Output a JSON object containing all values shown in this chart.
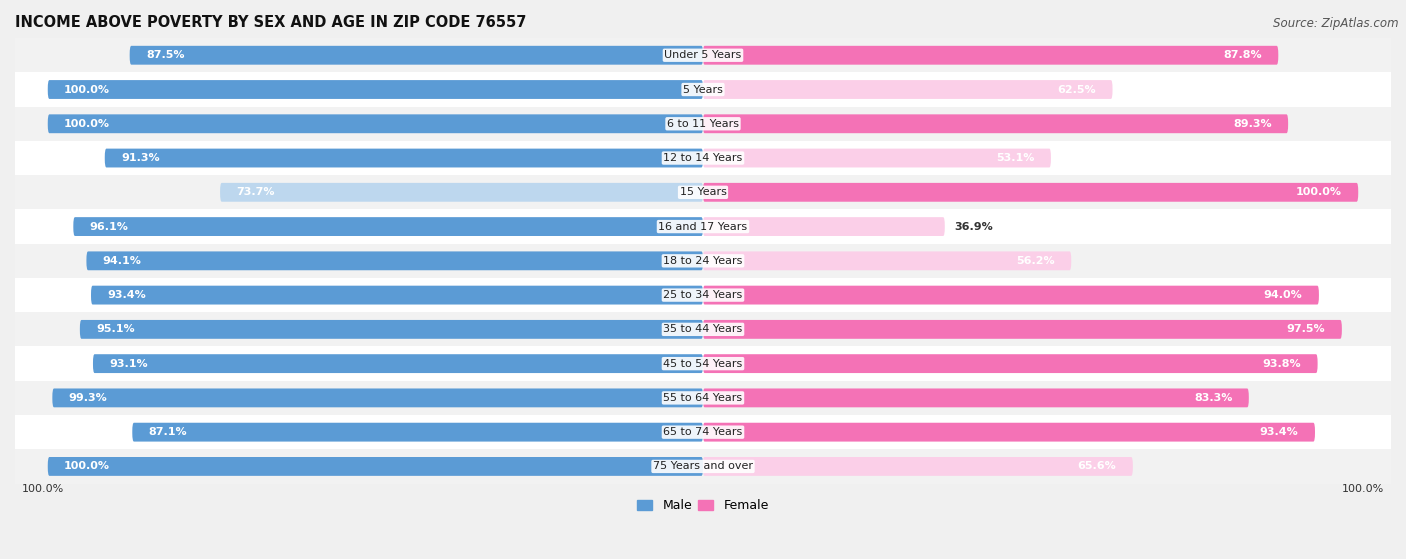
{
  "title": "INCOME ABOVE POVERTY BY SEX AND AGE IN ZIP CODE 76557",
  "source": "Source: ZipAtlas.com",
  "categories": [
    "Under 5 Years",
    "5 Years",
    "6 to 11 Years",
    "12 to 14 Years",
    "15 Years",
    "16 and 17 Years",
    "18 to 24 Years",
    "25 to 34 Years",
    "35 to 44 Years",
    "45 to 54 Years",
    "55 to 64 Years",
    "65 to 74 Years",
    "75 Years and over"
  ],
  "male": [
    87.5,
    100.0,
    100.0,
    91.3,
    73.7,
    96.1,
    94.1,
    93.4,
    95.1,
    93.1,
    99.3,
    87.1,
    100.0
  ],
  "female": [
    87.8,
    62.5,
    89.3,
    53.1,
    100.0,
    36.9,
    56.2,
    94.0,
    97.5,
    93.8,
    83.3,
    93.4,
    65.6
  ],
  "male_color_dark": "#5b9bd5",
  "male_color_light": "#bdd7ee",
  "female_color_dark": "#f472b6",
  "female_color_light": "#fbcfe8",
  "male_threshold": 85.0,
  "female_threshold": 70.0,
  "row_color_odd": "#f2f2f2",
  "row_color_even": "#ffffff",
  "bar_height": 0.55,
  "title_fontsize": 10.5,
  "source_fontsize": 8.5,
  "label_fontsize": 8.0,
  "tick_fontsize": 8.0,
  "legend_fontsize": 9
}
